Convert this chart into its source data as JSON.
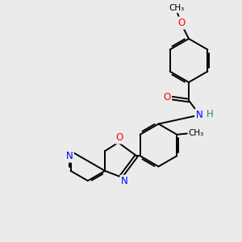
{
  "background_color": "#ebebeb",
  "bond_color": "#000000",
  "bond_width": 1.4,
  "atom_colors": {
    "O": "#ff0000",
    "N": "#0000ff",
    "C": "#000000",
    "H": "#2e8b57"
  },
  "font_size": 8.5,
  "figsize": [
    3.0,
    3.0
  ],
  "dpi": 100,
  "xlim": [
    0,
    10
  ],
  "ylim": [
    0,
    10
  ]
}
